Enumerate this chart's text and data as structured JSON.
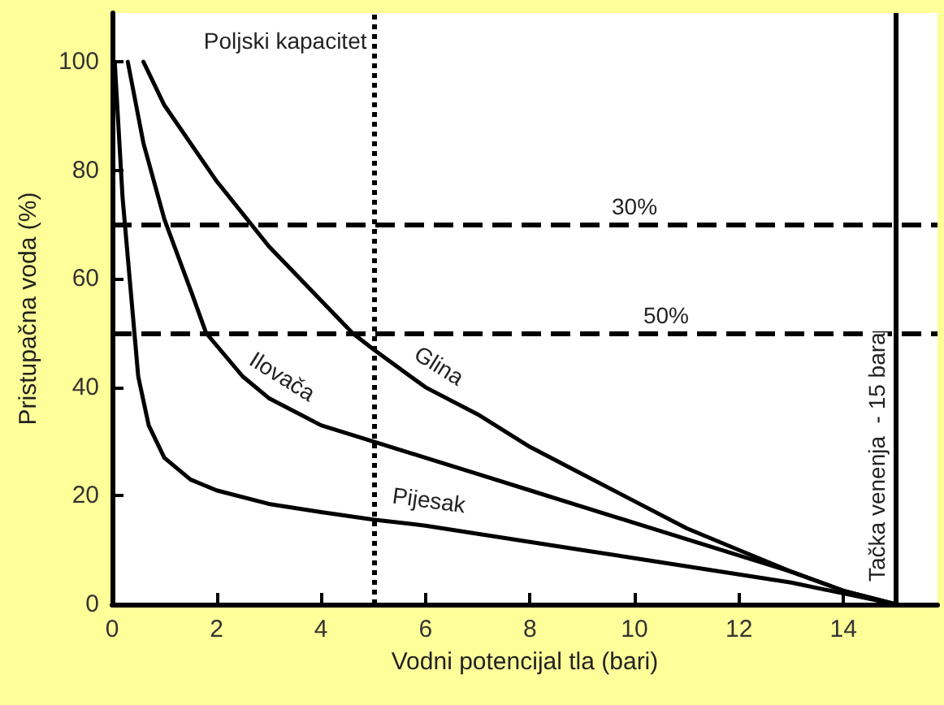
{
  "chart_data": {
    "type": "line",
    "xlabel": "Vodni potencijal tla (bari)",
    "ylabel": "Pristupačna voda (%)",
    "xlim": [
      0,
      15.8
    ],
    "xticks": [
      0,
      2,
      4,
      6,
      8,
      10,
      12,
      14
    ],
    "ylim": [
      0,
      109
    ],
    "yticks": [
      0,
      20,
      40,
      60,
      80,
      100
    ],
    "annotations": [
      {
        "text": "30%",
        "x": 10,
        "y": 70
      }
    ],
    "marker": "none",
    "line_style": "solid",
    "series": [
      {
        "name": "Glina",
        "color": "#000000",
        "x": [
          0.6,
          1,
          2,
          3,
          4,
          4.6,
          5,
          6,
          7,
          8,
          9,
          10,
          11,
          12,
          13,
          14,
          15
        ],
        "values": [
          100,
          92,
          78,
          66,
          56,
          50,
          47,
          40,
          35,
          29,
          24,
          19,
          14,
          10,
          6,
          2.5,
          0
        ]
      },
      {
        "name": "Ilovača",
        "color": "#000000",
        "x": [
          0.3,
          0.6,
          1,
          1.5,
          1.8,
          2.5,
          3,
          4,
          5,
          6,
          7,
          8,
          9,
          10,
          11,
          12,
          13,
          14,
          15
        ],
        "values": [
          100,
          85,
          71,
          58,
          50,
          42,
          38,
          33,
          30,
          27,
          24,
          21,
          18,
          15,
          12,
          9,
          6,
          2.5,
          0
        ]
      },
      {
        "name": "Pijesak",
        "color": "#000000",
        "x": [
          0.05,
          0.2,
          0.5,
          0.7,
          1,
          1.5,
          2,
          3,
          4,
          5,
          6,
          7,
          8,
          9,
          10,
          11,
          12,
          13,
          14,
          15
        ],
        "values": [
          100,
          75,
          42,
          33,
          27,
          23,
          21,
          18.5,
          17,
          15.6,
          14.5,
          13,
          11.5,
          10,
          8.5,
          7,
          5.5,
          4,
          2,
          0
        ]
      }
    ],
    "ref_lines": [
      {
        "axis": "x",
        "value": 5,
        "label": "Poljski kapacitet",
        "line_style": "dotted"
      },
      {
        "axis": "x",
        "value": 15,
        "label": "Tačka venenja  - 15 bara",
        "line_style": "solid"
      },
      {
        "axis": "y",
        "value": 70,
        "line_style": "dashed"
      },
      {
        "axis": "y",
        "value": 50,
        "label": "50%",
        "line_style": "dashed"
      }
    ]
  }
}
